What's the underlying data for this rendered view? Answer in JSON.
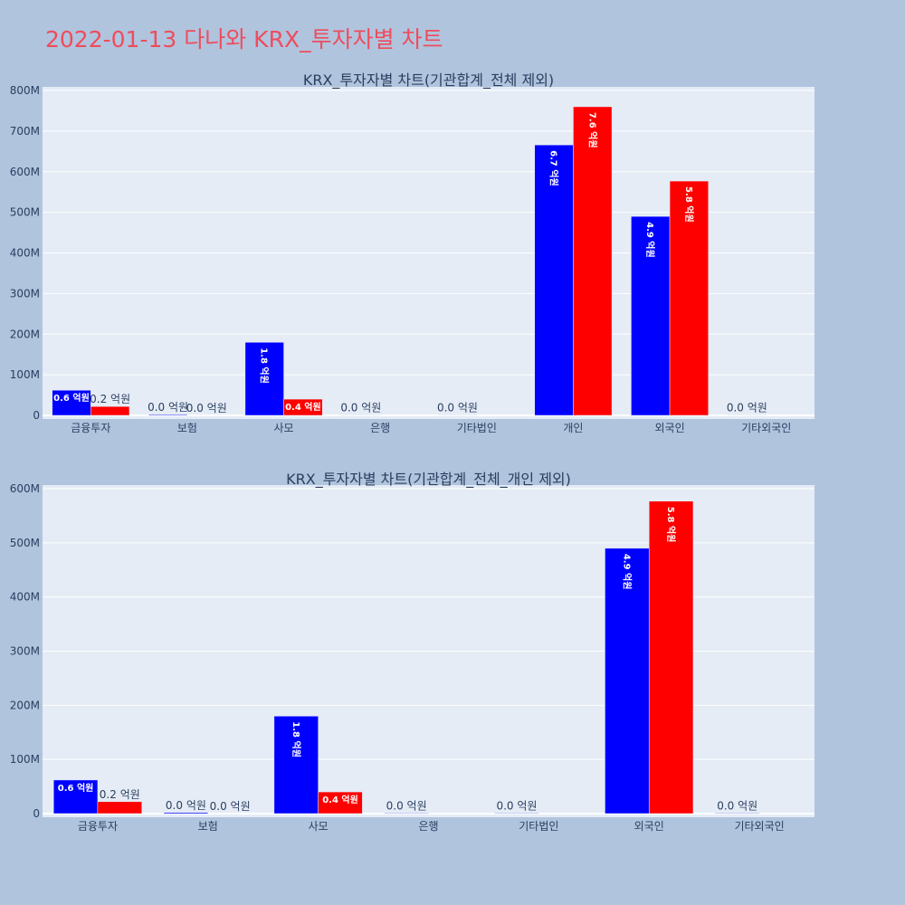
{
  "page": {
    "title": "2022-01-13 다나와 KRX_투자자별 차트",
    "title_color": "#ef4c5c",
    "background": "#b0c4de",
    "plot_background": "#e5ecf6",
    "grid_color": "#ffffff"
  },
  "chart_data": [
    {
      "type": "bar",
      "title": "KRX_투자자별 차트(기관합계_전체 제외)",
      "categories": [
        "금융투자",
        "보험",
        "사모",
        "은행",
        "기타법인",
        "개인",
        "외국인",
        "기타외국인"
      ],
      "ylim": [
        0,
        800000000
      ],
      "y_ticks": [
        {
          "value": 0,
          "label": "0"
        },
        {
          "value": 100000000,
          "label": "100M"
        },
        {
          "value": 200000000,
          "label": "200M"
        },
        {
          "value": 300000000,
          "label": "300M"
        },
        {
          "value": 400000000,
          "label": "400M"
        },
        {
          "value": 500000000,
          "label": "500M"
        },
        {
          "value": 600000000,
          "label": "600M"
        },
        {
          "value": 700000000,
          "label": "700M"
        },
        {
          "value": 800000000,
          "label": "800M"
        }
      ],
      "grid": true,
      "series": [
        {
          "color": "#0000ff",
          "values": [
            62000000,
            2000000,
            180000000,
            1000000,
            1000000,
            666000000,
            490000000,
            1000000
          ],
          "labels": [
            "0.6 억원",
            "0.0 억원",
            "1.8 억원",
            "0.0 억원",
            "0.0 억원",
            "6.7 억원",
            "4.9 억원",
            "0.0 억원"
          ]
        },
        {
          "color": "#ff0000",
          "values": [
            22000000,
            0,
            40000000,
            0,
            0,
            760000000,
            577000000,
            0
          ],
          "labels": [
            "0.2 억원",
            "0.0 억원",
            "0.4 억원",
            "",
            "",
            "7.6 억원",
            "5.8 억원",
            ""
          ]
        }
      ]
    },
    {
      "type": "bar",
      "title": "KRX_투자자별 차트(기관합계_전체_개인 제외)",
      "categories": [
        "금융투자",
        "보험",
        "사모",
        "은행",
        "기타법인",
        "외국인",
        "기타외국인"
      ],
      "ylim": [
        0,
        600000000
      ],
      "y_ticks": [
        {
          "value": 0,
          "label": "0"
        },
        {
          "value": 100000000,
          "label": "100M"
        },
        {
          "value": 200000000,
          "label": "200M"
        },
        {
          "value": 300000000,
          "label": "300M"
        },
        {
          "value": 400000000,
          "label": "400M"
        },
        {
          "value": 500000000,
          "label": "500M"
        },
        {
          "value": 600000000,
          "label": "600M"
        }
      ],
      "grid": true,
      "series": [
        {
          "color": "#0000ff",
          "values": [
            62000000,
            2000000,
            180000000,
            1000000,
            1000000,
            490000000,
            1000000
          ],
          "labels": [
            "0.6 억원",
            "0.0 억원",
            "1.8 억원",
            "0.0 억원",
            "0.0 억원",
            "4.9 억원",
            "0.0 억원"
          ]
        },
        {
          "color": "#ff0000",
          "values": [
            22000000,
            0,
            40000000,
            0,
            0,
            577000000,
            0
          ],
          "labels": [
            "0.2 억원",
            "0.0 억원",
            "0.4 억원",
            "",
            "",
            "5.8 억원",
            ""
          ]
        }
      ]
    }
  ]
}
